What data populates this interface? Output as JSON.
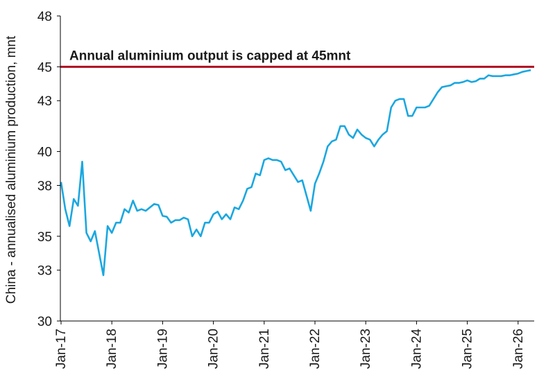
{
  "chart_data": {
    "type": "line",
    "title": "",
    "xlabel": "",
    "ylabel": "China - annualised aluminium production, mnt",
    "ylim": [
      30,
      48
    ],
    "y_ticks": [
      30,
      33,
      35,
      38,
      40,
      43,
      45,
      48
    ],
    "x_ticks": [
      "Jan-17",
      "Jan-18",
      "Jan-19",
      "Jan-20",
      "Jan-21",
      "Jan-22",
      "Jan-23",
      "Jan-24",
      "Jan-25",
      "Jan-26"
    ],
    "grid": false,
    "legend": "none",
    "colors": {
      "series": "#1aa7e0",
      "cap_line": "#b00f1f",
      "axis": "#000000"
    },
    "reference_line": {
      "value": 45,
      "label": "Annual aluminium output is capped at 45mnt"
    },
    "series": [
      {
        "x": [
          "2017-01",
          "2017-02",
          "2017-03",
          "2017-04",
          "2017-05",
          "2017-06",
          "2017-07",
          "2017-08",
          "2017-09",
          "2017-10",
          "2017-11",
          "2017-12",
          "2018-01",
          "2018-02",
          "2018-03",
          "2018-04",
          "2018-05",
          "2018-06",
          "2018-07",
          "2018-08",
          "2018-09",
          "2018-10",
          "2018-11",
          "2018-12",
          "2019-01",
          "2019-02",
          "2019-03",
          "2019-04",
          "2019-05",
          "2019-06",
          "2019-07",
          "2019-08",
          "2019-09",
          "2019-10",
          "2019-11",
          "2019-12",
          "2020-01",
          "2020-02",
          "2020-03",
          "2020-04",
          "2020-05",
          "2020-06",
          "2020-07",
          "2020-08",
          "2020-09",
          "2020-10",
          "2020-11",
          "2020-12",
          "2021-01",
          "2021-02",
          "2021-03",
          "2021-04",
          "2021-05",
          "2021-06",
          "2021-07",
          "2021-08",
          "2021-09",
          "2021-10",
          "2021-11",
          "2021-12",
          "2022-01",
          "2022-02",
          "2022-03",
          "2022-04",
          "2022-05",
          "2022-06",
          "2022-07",
          "2022-08",
          "2022-09",
          "2022-10",
          "2022-11",
          "2022-12",
          "2023-01",
          "2023-02",
          "2023-03",
          "2023-04",
          "2023-05",
          "2023-06",
          "2023-07",
          "2023-08",
          "2023-09",
          "2023-10",
          "2023-11",
          "2023-12",
          "2024-01",
          "2024-02",
          "2024-03",
          "2024-04",
          "2024-05",
          "2024-06",
          "2024-07",
          "2024-08",
          "2024-09",
          "2024-10",
          "2024-11",
          "2024-12",
          "2025-01",
          "2025-02",
          "2025-03",
          "2025-04",
          "2025-05",
          "2025-06",
          "2025-07",
          "2025-08",
          "2025-09",
          "2025-10",
          "2025-11",
          "2025-12",
          "2026-01",
          "2026-02",
          "2026-03",
          "2026-04"
        ],
        "values": [
          38.2,
          36.6,
          35.6,
          37.2,
          36.8,
          39.4,
          35.2,
          34.7,
          35.3,
          34.0,
          32.7,
          35.6,
          35.2,
          35.8,
          35.8,
          36.6,
          36.4,
          37.1,
          36.5,
          36.6,
          36.5,
          36.7,
          36.9,
          36.85,
          36.2,
          36.15,
          35.8,
          35.95,
          35.95,
          36.1,
          36.0,
          35.0,
          35.4,
          35.0,
          35.8,
          35.8,
          36.3,
          36.45,
          36.0,
          36.3,
          36.0,
          36.7,
          36.6,
          37.1,
          37.8,
          37.9,
          38.7,
          38.6,
          39.5,
          39.6,
          39.5,
          39.5,
          39.4,
          38.9,
          39.0,
          38.6,
          38.2,
          38.3,
          37.4,
          36.5,
          38.1,
          38.7,
          39.4,
          40.3,
          40.6,
          40.7,
          41.5,
          41.5,
          41.0,
          40.8,
          41.3,
          41.0,
          40.8,
          40.7,
          40.3,
          40.7,
          41.0,
          41.2,
          42.6,
          43.0,
          43.1,
          43.1,
          42.1,
          42.1,
          42.6,
          42.6,
          42.6,
          42.7,
          43.1,
          43.5,
          43.8,
          43.85,
          43.9,
          44.05,
          44.05,
          44.1,
          44.2,
          44.1,
          44.15,
          44.3,
          44.3,
          44.5,
          44.45,
          44.45,
          44.45,
          44.5,
          44.5,
          44.55,
          44.6,
          44.7,
          44.75,
          44.8
        ]
      }
    ]
  }
}
